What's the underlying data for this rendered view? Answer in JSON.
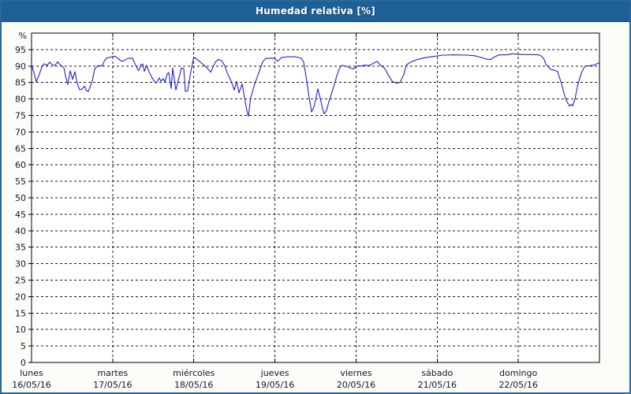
{
  "title": "Humedad relativa [%]",
  "colors": {
    "titlebar_bg": "#1E5F95",
    "titlebar_border": "#11497A",
    "titlebar_text": "#FFFFFF",
    "window_border": "#2A679A",
    "page_bg": "#FBFDF9",
    "plot_bg": "#FFFFFF",
    "frame": "#000000",
    "grid": "#1A1A1A",
    "text": "#14142A",
    "line": "#2121C8"
  },
  "chart_data": {
    "type": "line",
    "title": "Humedad relativa [%]",
    "ylabel": "%",
    "ylim": [
      0,
      100
    ],
    "yticks": [
      0,
      5,
      10,
      15,
      20,
      25,
      30,
      35,
      40,
      45,
      50,
      55,
      60,
      65,
      70,
      75,
      80,
      85,
      90,
      95
    ],
    "grid": "dashed",
    "legend": "none",
    "xlim_days": [
      0,
      7
    ],
    "x_unit": "days since lunes 16/05/16 00:00",
    "x_days": [
      {
        "name": "lunes",
        "date": "16/05/16"
      },
      {
        "name": "martes",
        "date": "17/05/16"
      },
      {
        "name": "miércoles",
        "date": "18/05/16"
      },
      {
        "name": "jueves",
        "date": "19/05/16"
      },
      {
        "name": "viernes",
        "date": "20/05/16"
      },
      {
        "name": "sábado",
        "date": "21/05/16"
      },
      {
        "name": "domingo",
        "date": "22/05/16"
      }
    ],
    "series": [
      {
        "name": "Humedad relativa",
        "color": "#2121C8",
        "points": [
          [
            0.0,
            90.4
          ],
          [
            0.029,
            88.0
          ],
          [
            0.058,
            85.2
          ],
          [
            0.097,
            87.5
          ],
          [
            0.126,
            89.8
          ],
          [
            0.156,
            90.7
          ],
          [
            0.194,
            90.2
          ],
          [
            0.224,
            91.2
          ],
          [
            0.253,
            90.4
          ],
          [
            0.292,
            90.2
          ],
          [
            0.321,
            91.3
          ],
          [
            0.36,
            90.2
          ],
          [
            0.399,
            89.5
          ],
          [
            0.418,
            87.0
          ],
          [
            0.447,
            84.4
          ],
          [
            0.476,
            88.6
          ],
          [
            0.506,
            85.9
          ],
          [
            0.535,
            88.3
          ],
          [
            0.564,
            84.7
          ],
          [
            0.593,
            82.8
          ],
          [
            0.622,
            83.0
          ],
          [
            0.651,
            83.9
          ],
          [
            0.68,
            82.5
          ],
          [
            0.7,
            82.3
          ],
          [
            0.749,
            85.5
          ],
          [
            0.778,
            89.1
          ],
          [
            0.817,
            90.1
          ],
          [
            0.875,
            90.1
          ],
          [
            0.894,
            91.4
          ],
          [
            0.923,
            92.4
          ],
          [
            0.972,
            92.7
          ],
          [
            1.021,
            93.0
          ],
          [
            1.05,
            92.7
          ],
          [
            1.089,
            91.8
          ],
          [
            1.118,
            91.4
          ],
          [
            1.147,
            91.8
          ],
          [
            1.186,
            92.3
          ],
          [
            1.245,
            92.4
          ],
          [
            1.274,
            90.8
          ],
          [
            1.303,
            89.2
          ],
          [
            1.322,
            88.6
          ],
          [
            1.351,
            90.5
          ],
          [
            1.371,
            90.6
          ],
          [
            1.39,
            88.4
          ],
          [
            1.419,
            90.2
          ],
          [
            1.439,
            88.8
          ],
          [
            1.478,
            86.8
          ],
          [
            1.507,
            85.6
          ],
          [
            1.536,
            84.8
          ],
          [
            1.575,
            86.4
          ],
          [
            1.594,
            85.4
          ],
          [
            1.624,
            86.2
          ],
          [
            1.643,
            85.1
          ],
          [
            1.672,
            87.6
          ],
          [
            1.692,
            88.0
          ],
          [
            1.721,
            83.2
          ],
          [
            1.74,
            89.4
          ],
          [
            1.779,
            82.7
          ],
          [
            1.818,
            86.5
          ],
          [
            1.847,
            89.4
          ],
          [
            1.876,
            89.2
          ],
          [
            1.896,
            82.3
          ],
          [
            1.925,
            82.5
          ],
          [
            1.964,
            88.4
          ],
          [
            1.993,
            92.0
          ],
          [
            2.013,
            92.6
          ],
          [
            2.042,
            92.0
          ],
          [
            2.09,
            91.0
          ],
          [
            2.129,
            90.2
          ],
          [
            2.168,
            89.3
          ],
          [
            2.207,
            88.1
          ],
          [
            2.265,
            91.2
          ],
          [
            2.304,
            92.0
          ],
          [
            2.343,
            91.6
          ],
          [
            2.382,
            90.1
          ],
          [
            2.411,
            88.0
          ],
          [
            2.46,
            85.4
          ],
          [
            2.499,
            82.7
          ],
          [
            2.528,
            85.4
          ],
          [
            2.557,
            81.9
          ],
          [
            2.596,
            84.6
          ],
          [
            2.625,
            80.5
          ],
          [
            2.654,
            76.5
          ],
          [
            2.673,
            74.7
          ],
          [
            2.702,
            80.4
          ],
          [
            2.732,
            83.0
          ],
          [
            2.751,
            84.6
          ],
          [
            2.8,
            87.9
          ],
          [
            2.848,
            91.2
          ],
          [
            2.887,
            92.3
          ],
          [
            2.946,
            92.4
          ],
          [
            2.994,
            92.3
          ],
          [
            3.033,
            91.4
          ],
          [
            3.082,
            92.6
          ],
          [
            3.16,
            92.8
          ],
          [
            3.257,
            92.8
          ],
          [
            3.325,
            92.4
          ],
          [
            3.354,
            91.2
          ],
          [
            3.383,
            86.9
          ],
          [
            3.422,
            80.4
          ],
          [
            3.451,
            76.1
          ],
          [
            3.48,
            77.5
          ],
          [
            3.5,
            79.6
          ],
          [
            3.529,
            83.1
          ],
          [
            3.568,
            79.2
          ],
          [
            3.587,
            77.0
          ],
          [
            3.607,
            75.5
          ],
          [
            3.636,
            76.5
          ],
          [
            3.665,
            79.2
          ],
          [
            3.714,
            82.9
          ],
          [
            3.762,
            86.9
          ],
          [
            3.791,
            89.0
          ],
          [
            3.821,
            90.2
          ],
          [
            3.869,
            90.0
          ],
          [
            3.918,
            89.5
          ],
          [
            3.966,
            89.1
          ],
          [
            4.015,
            90.1
          ],
          [
            4.064,
            90.0
          ],
          [
            4.112,
            90.3
          ],
          [
            4.161,
            90.1
          ],
          [
            4.21,
            90.8
          ],
          [
            4.258,
            91.4
          ],
          [
            4.307,
            90.1
          ],
          [
            4.346,
            89.5
          ],
          [
            4.394,
            87.4
          ],
          [
            4.443,
            85.4
          ],
          [
            4.492,
            84.8
          ],
          [
            4.54,
            85.0
          ],
          [
            4.589,
            87.4
          ],
          [
            4.618,
            90.3
          ],
          [
            4.667,
            91.1
          ],
          [
            4.744,
            91.9
          ],
          [
            4.842,
            92.5
          ],
          [
            4.978,
            93.0
          ],
          [
            5.075,
            93.3
          ],
          [
            5.201,
            93.4
          ],
          [
            5.367,
            93.3
          ],
          [
            5.464,
            93.1
          ],
          [
            5.542,
            92.6
          ],
          [
            5.619,
            92.0
          ],
          [
            5.658,
            92.0
          ],
          [
            5.717,
            92.9
          ],
          [
            5.765,
            93.4
          ],
          [
            5.853,
            93.4
          ],
          [
            5.93,
            93.7
          ],
          [
            5.979,
            93.6
          ],
          [
            6.028,
            93.5
          ],
          [
            6.125,
            93.5
          ],
          [
            6.251,
            93.4
          ],
          [
            6.29,
            92.9
          ],
          [
            6.319,
            92.0
          ],
          [
            6.339,
            90.5
          ],
          [
            6.368,
            89.8
          ],
          [
            6.397,
            89.0
          ],
          [
            6.446,
            88.7
          ],
          [
            6.485,
            88.3
          ],
          [
            6.514,
            86.0
          ],
          [
            6.533,
            84.6
          ],
          [
            6.563,
            81.7
          ],
          [
            6.592,
            79.6
          ],
          [
            6.631,
            77.8
          ],
          [
            6.65,
            78.4
          ],
          [
            6.669,
            77.9
          ],
          [
            6.699,
            80.0
          ],
          [
            6.728,
            83.8
          ],
          [
            6.776,
            87.9
          ],
          [
            6.806,
            89.3
          ],
          [
            6.825,
            90.0
          ],
          [
            6.883,
            90.1
          ],
          [
            6.932,
            90.3
          ],
          [
            6.961,
            90.6
          ],
          [
            7.0,
            91.0
          ]
        ]
      }
    ]
  }
}
